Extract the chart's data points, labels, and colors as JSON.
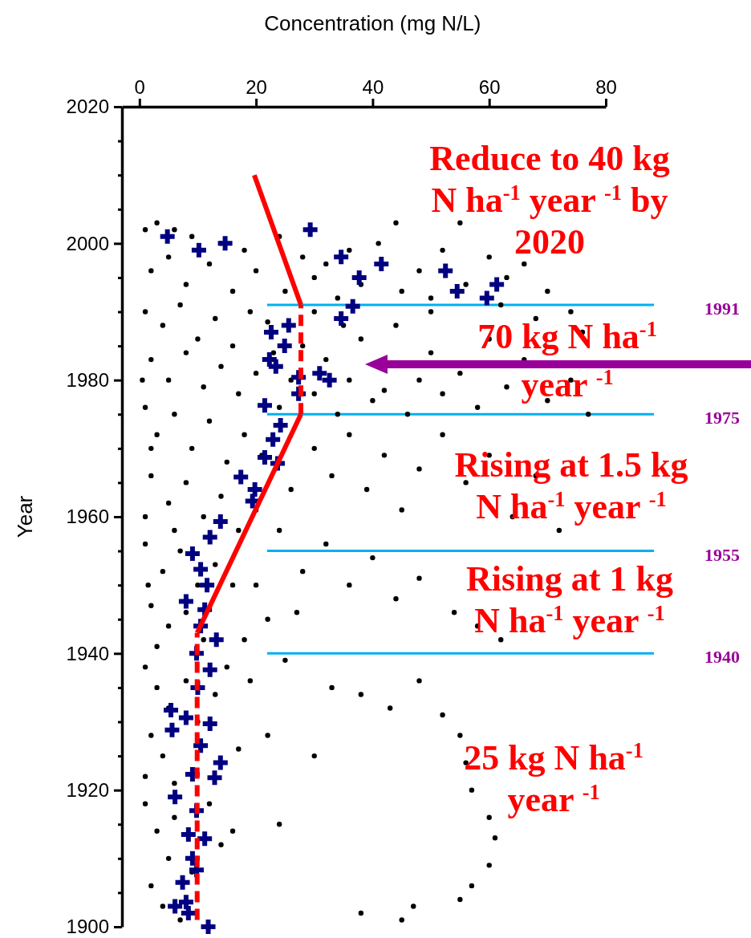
{
  "chart_data": {
    "type": "scatter",
    "xlabel": "Concentration (mg N/L)",
    "ylabel": "Year",
    "xlim": [
      -3,
      80
    ],
    "xticks": [
      0,
      20,
      40,
      60,
      80
    ],
    "ylim": [
      1900,
      2020
    ],
    "yticks": [
      1900,
      {
        "value": 1905,
        "label": null
      },
      {
        "value": 1910,
        "label": null
      },
      {
        "value": 1915,
        "label": null
      },
      1920,
      {
        "value": 1925,
        "label": null
      },
      {
        "value": 1930,
        "label": null
      },
      {
        "value": 1935,
        "label": null
      },
      1940,
      {
        "value": 1945,
        "label": null
      },
      {
        "value": 1950,
        "label": null
      },
      {
        "value": 1955,
        "label": null
      },
      1960,
      {
        "value": 1965,
        "label": null
      },
      {
        "value": 1970,
        "label": null
      },
      {
        "value": 1975,
        "label": null
      },
      1980,
      {
        "value": 1985,
        "label": null
      },
      {
        "value": 1990,
        "label": null
      },
      {
        "value": 1995,
        "label": null
      },
      2000,
      {
        "value": 2005,
        "label": null
      },
      {
        "value": 2010,
        "label": null
      },
      {
        "value": 2015,
        "label": null
      },
      2020
    ],
    "series": [
      {
        "marker": "circle",
        "color": "#000000",
        "x": [
          1,
          3,
          6,
          9,
          14,
          18,
          24,
          28,
          32,
          36,
          41,
          44,
          48,
          52,
          55,
          60,
          63,
          45,
          38,
          30,
          20,
          12,
          5,
          2,
          8,
          16,
          25,
          34,
          50,
          56,
          66,
          70,
          74,
          1,
          4,
          7,
          10,
          13,
          16,
          19,
          22,
          2,
          5,
          8,
          11,
          14,
          17,
          20,
          23,
          1,
          3,
          6,
          9,
          12,
          15,
          18,
          21,
          24,
          2,
          5,
          8,
          11,
          14,
          17,
          20,
          1,
          4,
          7,
          10,
          13,
          16,
          2,
          5,
          8,
          11,
          3,
          1,
          2,
          0.5,
          1.5,
          6,
          26,
          28,
          30,
          32,
          34,
          36,
          38,
          40,
          42,
          44,
          46,
          48,
          50,
          52,
          55,
          58,
          60,
          63,
          66,
          70,
          74,
          77,
          30,
          33,
          36,
          39,
          42,
          45,
          48,
          52,
          56,
          60,
          64,
          68,
          72,
          26,
          24,
          28,
          32,
          36,
          40,
          44,
          48,
          54,
          58,
          62,
          20,
          22,
          18,
          27,
          30,
          35,
          50,
          62,
          68,
          76,
          1,
          3,
          5,
          2,
          4,
          6,
          1,
          3,
          5,
          2,
          4,
          7,
          8,
          10,
          13,
          15,
          17,
          12,
          14,
          9,
          16,
          19,
          25,
          33,
          38,
          43,
          48,
          52,
          55,
          56,
          57,
          60,
          61,
          60,
          57,
          55,
          47,
          45,
          38,
          24,
          22,
          30,
          1,
          6
        ],
        "values": [
          2002,
          2003,
          2002,
          2001,
          2000,
          1999,
          2001,
          1998,
          1997,
          1999,
          2000,
          2003,
          1996,
          1999,
          2003,
          1998,
          1995,
          1993,
          1994,
          1995,
          1996,
          1997,
          1998,
          1996,
          1994,
          1993,
          1993,
          1992,
          1992,
          1994,
          1997,
          1993,
          1990,
          1990,
          1988,
          1991,
          1986,
          1989,
          1985,
          1990,
          1988.5,
          1983,
          1980,
          1984,
          1979,
          1982,
          1978,
          1981,
          1984,
          1976,
          1972,
          1975,
          1970,
          1974,
          1968,
          1972,
          1969,
          1976,
          1966,
          1962,
          1965,
          1960,
          1963,
          1958,
          1961,
          1956,
          1952,
          1955,
          1950,
          1953,
          1950,
          1947,
          1944,
          1946,
          1942,
          1941,
          1960,
          1970,
          1980,
          1950,
          1958,
          1980,
          1985,
          1978,
          1983,
          1975,
          1980,
          1986,
          1977,
          1978.5,
          1988,
          1975,
          1980,
          1984,
          1978,
          1981,
          1976,
          1986,
          1979,
          1983,
          1977,
          1980,
          1975,
          1970,
          1966,
          1972,
          1964,
          1969,
          1961,
          1967,
          1972,
          1965,
          1969,
          1960,
          1966,
          1958,
          1964,
          1958,
          1952,
          1956,
          1950,
          1954,
          1948,
          1951,
          1946,
          1944,
          1942,
          1950,
          1945,
          1942,
          1946,
          1990,
          1988,
          1990,
          1991,
          1989,
          1987,
          1938,
          1935,
          1932,
          1928,
          1925,
          1921,
          1918,
          1914,
          1910,
          1906,
          1903,
          1901,
          1936,
          1930,
          1934,
          1938,
          1926,
          1918,
          1912,
          1908,
          1914,
          1936,
          1939,
          1935,
          1934,
          1932,
          1936,
          1931,
          1928,
          1924,
          1920,
          1916,
          1913,
          1909,
          1906,
          1904,
          1903,
          1901,
          1902,
          1915,
          1928,
          1925,
          1922,
          1916
        ]
      },
      {
        "marker": "cross",
        "color": "#000080",
        "x": [
          4.8,
          10.2,
          14.7,
          29.3,
          34.6,
          41.5,
          37.7,
          52.5,
          54.5,
          59.6,
          61.3,
          36.6,
          34.6,
          22.6,
          25.6,
          24.9,
          22.3,
          23.4,
          27.3,
          30.9,
          32.6,
          27.3,
          21.5,
          24.2,
          22.9,
          21.5,
          23.7,
          17.4,
          19.8,
          19.4,
          13.9,
          12.1,
          9.1,
          10.5,
          11.6,
          8,
          11.2,
          10.5,
          13.2,
          9.8,
          12.1,
          10,
          5.4,
          8,
          12.1,
          5.6,
          10.5,
          13.9,
          9.1,
          12.9,
          6.1,
          9.8,
          8.4,
          11.2,
          9.1,
          9.8,
          7.4,
          8,
          6.1,
          8.4,
          11.8
        ],
        "values": [
          2001,
          1999,
          2000,
          2002,
          1998,
          1997,
          1995,
          1996,
          1993,
          1992,
          1994,
          1990.8,
          1989,
          1987,
          1988,
          1985,
          1983,
          1982,
          1980.4,
          1981,
          1980,
          1978,
          1976.3,
          1973.4,
          1971.3,
          1968.7,
          1967.8,
          1965.8,
          1964,
          1962.3,
          1959.3,
          1957,
          1954.6,
          1952.3,
          1950,
          1947.6,
          1946.4,
          1944,
          1942,
          1940,
          1937.6,
          1935,
          1931.7,
          1930.6,
          1929.7,
          1928.8,
          1926.5,
          1924,
          1922.3,
          1921.8,
          1919,
          1917,
          1913.5,
          1912.9,
          1910,
          1908.3,
          1906.5,
          1903.6,
          1903,
          1902,
          1900
        ]
      },
      {
        "type": "line",
        "marker": "none",
        "line_style": "dashed",
        "color": "#ff0000",
        "x": [
          9.9,
          9.9
        ],
        "values": [
          1901,
          1943
        ]
      },
      {
        "type": "line",
        "marker": "none",
        "line_style": "solid",
        "color": "#ff0000",
        "x": [
          9.9,
          27.7
        ],
        "values": [
          1943,
          1975
        ]
      },
      {
        "type": "line",
        "marker": "none",
        "line_style": "dashed",
        "color": "#ff0000",
        "x": [
          27.7,
          27.7
        ],
        "values": [
          1975,
          1991
        ]
      },
      {
        "type": "line",
        "marker": "none",
        "line_style": "solid",
        "color": "#ff0000",
        "x": [
          27.7,
          19.7
        ],
        "values": [
          1991,
          2010
        ]
      }
    ],
    "ref_lines": [
      {
        "axis": "y",
        "value": 1991,
        "label": "1991",
        "color": "#00b0f0"
      },
      {
        "axis": "y",
        "value": 1975,
        "label": "1975",
        "color": "#00b0f0"
      },
      {
        "axis": "y",
        "value": 1955,
        "label": "1955",
        "color": "#00b0f0"
      },
      {
        "axis": "y",
        "value": 1940,
        "label": "1940",
        "color": "#00b0f0"
      }
    ],
    "annotations": [
      "Reduce to 40 kg N ha$^{-1}$ year $^{-1}$ by 2020",
      "70 kg N ha$^{-1}$ year $^{-1}$",
      "Rising at 1.5 kg N ha$^{-1}$ year $^{-1}$",
      "Rising at 1 kg N ha$^{-1}$ year $^{-1}$",
      "25 kg N ha$^{-1}$ year $^{-1}$"
    ]
  }
}
